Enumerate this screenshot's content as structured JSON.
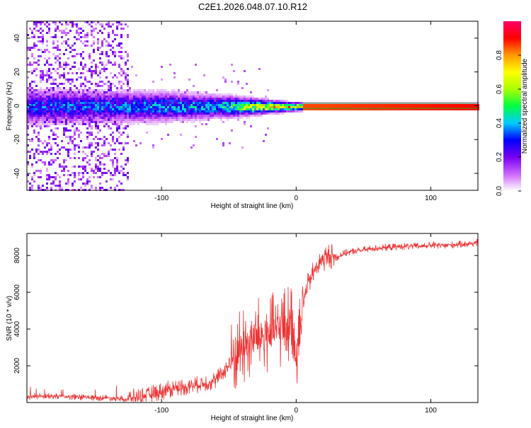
{
  "title": "C2E1.2026.048.07.10.R12",
  "chart_data": [
    {
      "type": "heatmap",
      "name": "spectrogram",
      "xlabel": "Height of straight line (km)",
      "ylabel": "Frequency (Hz)",
      "xlim": [
        -200,
        135
      ],
      "ylim": [
        -50,
        50
      ],
      "xticks": [
        -100,
        0,
        100
      ],
      "yticks": [
        -40,
        -20,
        0,
        20,
        40
      ],
      "colorbar": {
        "label": "Normalized spectral amplitude",
        "range": [
          0,
          1
        ],
        "ticks": [
          "0.0",
          "0.2",
          "0.4",
          "0.6",
          "0.8"
        ],
        "tick_values": [
          0,
          0.2,
          0.4,
          0.6,
          0.8
        ],
        "colors": [
          "#ffffff",
          "#cc66ff",
          "#7700ee",
          "#0000ff",
          "#00ccff",
          "#00ff44",
          "#aaff00",
          "#ffff00",
          "#ff9900",
          "#ff0000",
          "#ff0066"
        ]
      },
      "features": {
        "broadband_noise_x_range": [
          -200,
          -125
        ],
        "signal_band_half_width_hz": [
          [
            -200,
            8
          ],
          [
            -100,
            7
          ],
          [
            -50,
            5
          ],
          [
            -20,
            3
          ],
          [
            0,
            2
          ],
          [
            135,
            1.5
          ]
        ],
        "signal_peak_amplitude": [
          [
            -200,
            0.35
          ],
          [
            -120,
            0.4
          ],
          [
            -60,
            0.45
          ],
          [
            -30,
            0.75
          ],
          [
            0,
            0.85
          ],
          [
            135,
            0.9
          ]
        ]
      }
    },
    {
      "type": "line",
      "name": "snr",
      "xlabel": "Height of straight line (km)",
      "ylabel": "SNR (10 * v/v)",
      "xlim": [
        -200,
        135
      ],
      "ylim": [
        0,
        9200
      ],
      "xticks": [
        -100,
        0,
        100
      ],
      "yticks": [
        2000,
        4000,
        6000,
        8000
      ],
      "series": [
        {
          "name": "SNR",
          "color": "#ee3333",
          "x": [
            -200,
            -180,
            -160,
            -140,
            -125,
            -115,
            -100,
            -90,
            -80,
            -70,
            -60,
            -50,
            -45,
            -40,
            -35,
            -30,
            -25,
            -20,
            -15,
            -10,
            -5,
            -2,
            0,
            2,
            5,
            8,
            10,
            15,
            20,
            25,
            30,
            35,
            40,
            50,
            60,
            70,
            80,
            90,
            100,
            110,
            120,
            130,
            135
          ],
          "y": [
            300,
            350,
            280,
            250,
            200,
            350,
            600,
            800,
            900,
            1000,
            1200,
            2000,
            2600,
            3000,
            3300,
            3500,
            3600,
            3700,
            3900,
            4100,
            4300,
            4400,
            2000,
            4600,
            5400,
            6200,
            6600,
            7400,
            7800,
            8000,
            7900,
            8100,
            8200,
            8300,
            8400,
            8450,
            8500,
            8500,
            8550,
            8550,
            8600,
            8650,
            8700
          ]
        }
      ]
    }
  ]
}
